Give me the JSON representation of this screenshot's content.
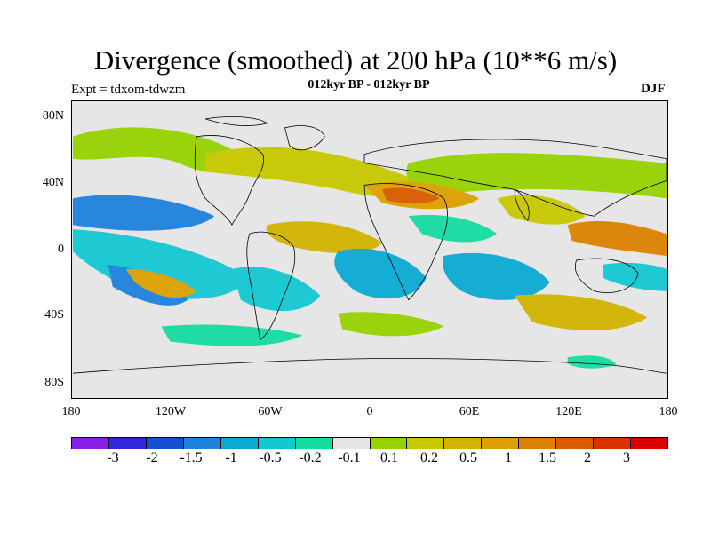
{
  "title": "Divergence (smoothed) at 200 hPa (10**6 m/s)",
  "subtitle": "012kyr BP - 012kyr BP",
  "experiment_label": "Expt = tdxom-tdwzm",
  "season": "DJF",
  "map": {
    "projection": "equirectangular",
    "lon_range": [
      -180,
      180
    ],
    "lat_range": [
      -90,
      90
    ],
    "background_color": "#e6e6e6",
    "lat_ticks": [
      "80N",
      "40N",
      "0",
      "40S",
      "80S"
    ],
    "lon_ticks": [
      "180",
      "120W",
      "60W",
      "0",
      "60E",
      "120E",
      "180"
    ],
    "features": [
      {
        "name": "north-africa-arabia-divergence",
        "level": "1.5",
        "lon": 25,
        "lat": 22
      },
      {
        "name": "maritime-continent-divergence",
        "level": "1",
        "lon": 130,
        "lat": 5
      },
      {
        "name": "south-pacific-convergence",
        "level": "-1",
        "lon": -120,
        "lat": -25
      },
      {
        "name": "south-atlantic-convergence",
        "level": "-1",
        "lon": -10,
        "lat": -25
      },
      {
        "name": "south-indian-ocean-convergence",
        "level": "-1",
        "lon": 65,
        "lat": -25
      },
      {
        "name": "eastern-pacific-convergence",
        "level": "-1",
        "lon": -170,
        "lat": 5
      }
    ]
  },
  "colorbar": {
    "colors": [
      "#8a1ee6",
      "#3226dc",
      "#1450d2",
      "#1e82dc",
      "#0aaad2",
      "#14c8d2",
      "#14dca0",
      "#e6e6e6",
      "#96d200",
      "#c8c800",
      "#d2b400",
      "#dca000",
      "#dc8200",
      "#dc5a00",
      "#dc3200",
      "#dc0000"
    ],
    "labels": [
      "-3",
      "-2",
      "-1.5",
      "-1",
      "-0.5",
      "-0.2",
      "-0.1",
      "0.1",
      "0.2",
      "0.5",
      "1",
      "1.5",
      "2",
      "3"
    ]
  }
}
